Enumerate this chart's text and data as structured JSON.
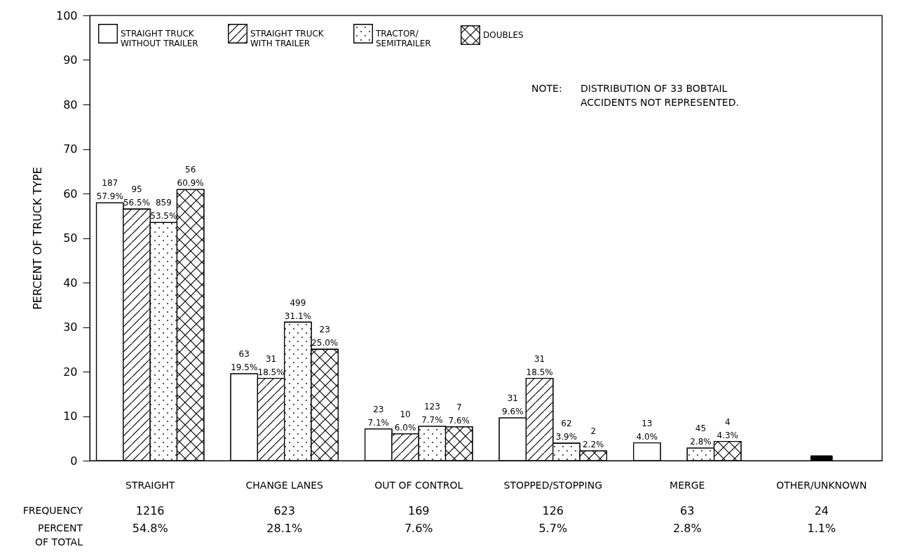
{
  "chart_data": {
    "type": "bar",
    "ylabel": "PERCENT OF TRUCK TYPE",
    "categories": [
      "STRAIGHT",
      "CHANGE LANES",
      "OUT OF CONTROL",
      "STOPPED/STOPPING",
      "MERGE",
      "OTHER/UNKNOWN"
    ],
    "series": [
      {
        "name": "STRAIGHT TRUCK WITHOUT TRAILER",
        "color": "#ffffff",
        "values": [
          57.9,
          19.5,
          7.1,
          9.6,
          4.0,
          null
        ],
        "value_labels": [
          "187 57.9%",
          "63 19.5%",
          "23 7.1%",
          "31 9.6%",
          "13 4.0%",
          null
        ]
      },
      {
        "name": "STRAIGHT TRUCK WITH TRAILER",
        "color": "#ffffff",
        "values": [
          56.5,
          18.5,
          6.0,
          18.5,
          null,
          null
        ],
        "value_labels": [
          "95 56.5%",
          "31 18.5%",
          "10 6.0%",
          "31 18.5%",
          null,
          null
        ]
      },
      {
        "name": "TRACTOR/ SEMITRAILER",
        "color": "#ffffff",
        "values": [
          53.5,
          31.1,
          7.7,
          3.9,
          2.8,
          null
        ],
        "value_labels": [
          "859 53.5%",
          "499 31.1%",
          "123 7.7%",
          "62 3.9%",
          "45 2.8%",
          null
        ]
      },
      {
        "name": "DOUBLES",
        "color": "#ffffff",
        "values": [
          60.9,
          25.0,
          7.6,
          2.2,
          4.3,
          null
        ],
        "value_labels": [
          "56 60.9%",
          "23 25.0%",
          "7 7.6%",
          "2 2.2%",
          "4 4.3%",
          null
        ]
      },
      {
        "color": "#000000",
        "values": [
          null,
          null,
          null,
          null,
          null,
          1.1
        ]
      }
    ],
    "ylim": [
      0,
      100
    ],
    "yticks": [
      0,
      10,
      20,
      30,
      40,
      50,
      60,
      70,
      80,
      90,
      100
    ],
    "grid": false,
    "legend": "top left",
    "annotations": [
      "NOTE:  DISTRIBUTION OF 33 BOBTAIL ACCIDENTS NOT REPRESENTED.",
      "FREQUENCY",
      "PERCENT OF TOTAL",
      "1216",
      "54.8%",
      "623",
      "28.1%",
      "169",
      "7.6%",
      "126",
      "5.7%",
      "63",
      "2.8%",
      "24",
      "1.1%"
    ]
  }
}
